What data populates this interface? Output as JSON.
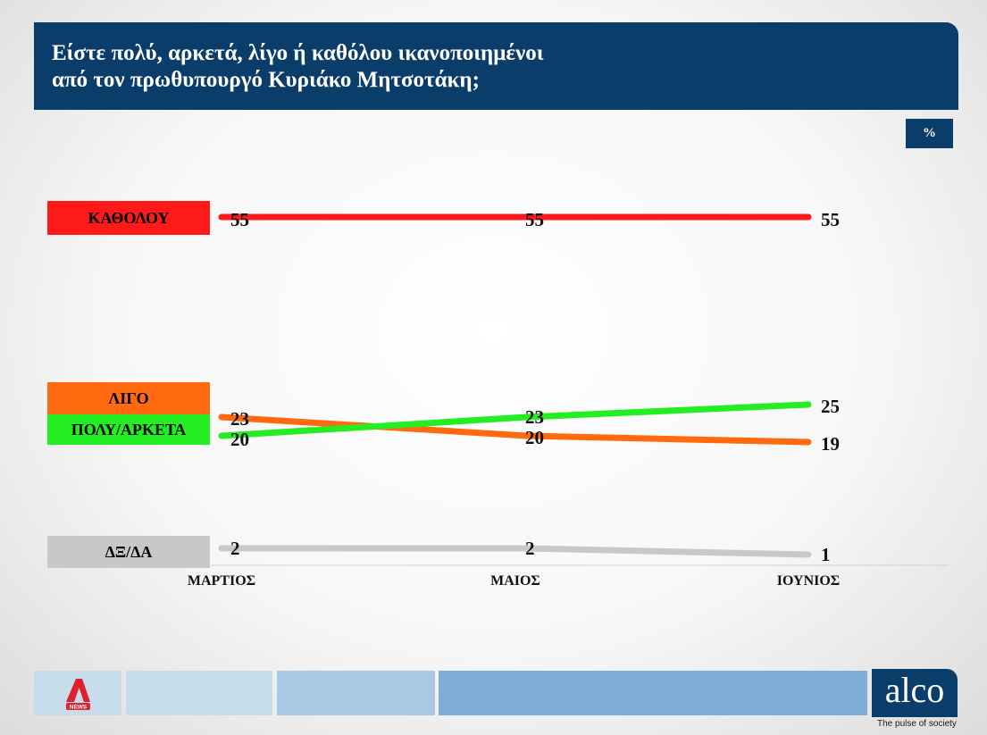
{
  "header": {
    "title_line1": "Είστε πολύ, αρκετά, λίγο ή καθόλου ικανοποιημένοι",
    "title_line2": "από τον πρωθυπουργό Κυριάκο Μητσοτάκη;"
  },
  "unit_label": "%",
  "chart_data": {
    "type": "line",
    "title": "Είστε πολύ, αρκετά, λίγο ή καθόλου ικανοποιημένοι από τον πρωθυπουργό Κυριάκο Μητσοτάκη;",
    "categories": [
      "ΜΑΡΤΙΟΣ",
      "ΜΑΙΟΣ",
      "ΙΟΥΝΙΟΣ"
    ],
    "unit": "%",
    "ylim": [
      0,
      60
    ],
    "grid": false,
    "legend_position": "left",
    "series": [
      {
        "name": "ΚΑΘΟΛΟΥ",
        "color": "#ff1a1a",
        "values": [
          55,
          55,
          55
        ]
      },
      {
        "name": "ΛΙΓΟ",
        "color": "#ff6a10",
        "values": [
          23,
          20,
          19
        ]
      },
      {
        "name": "ΠΟΛΥ/ΑΡΚΕΤΑ",
        "color": "#22ee22",
        "values": [
          20,
          23,
          25
        ]
      },
      {
        "name": "ΔΞ/ΔΑ",
        "color": "#c8c8c8",
        "values": [
          2,
          2,
          1
        ]
      }
    ]
  },
  "footer": {
    "brand": "alco",
    "tagline": "The pulse of society",
    "news_logo_text": "NEWS",
    "segment_colors": [
      "#c6dceb",
      "#a9c8e3",
      "#7eaed6"
    ]
  }
}
